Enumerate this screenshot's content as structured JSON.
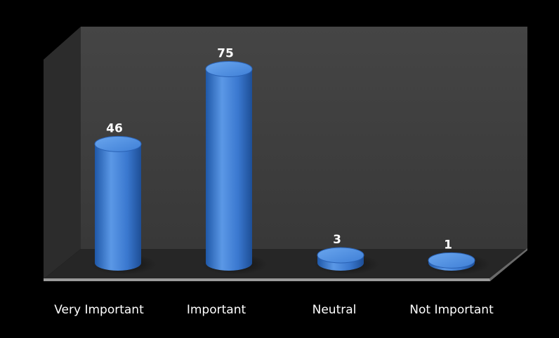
{
  "chart_data": {
    "type": "bar",
    "categories": [
      "Very Important",
      "Important",
      "Neutral",
      "Not Important"
    ],
    "values": [
      46,
      75,
      3,
      1
    ],
    "data_labels": [
      "46",
      "75",
      "3",
      "1"
    ],
    "title": "",
    "xlabel": "",
    "ylabel": "",
    "ylim": [
      0,
      80
    ],
    "grid": false,
    "legend": "none",
    "style": "3d-cylinder",
    "colors": {
      "bar": "#3a78cf",
      "bar_highlight": "#6aa6ee",
      "bar_shadow": "#1d4e96",
      "back_wall": "#3e3e3e",
      "side_wall": "#2c2c2c",
      "floor": "#262626",
      "background": "#000000"
    }
  }
}
